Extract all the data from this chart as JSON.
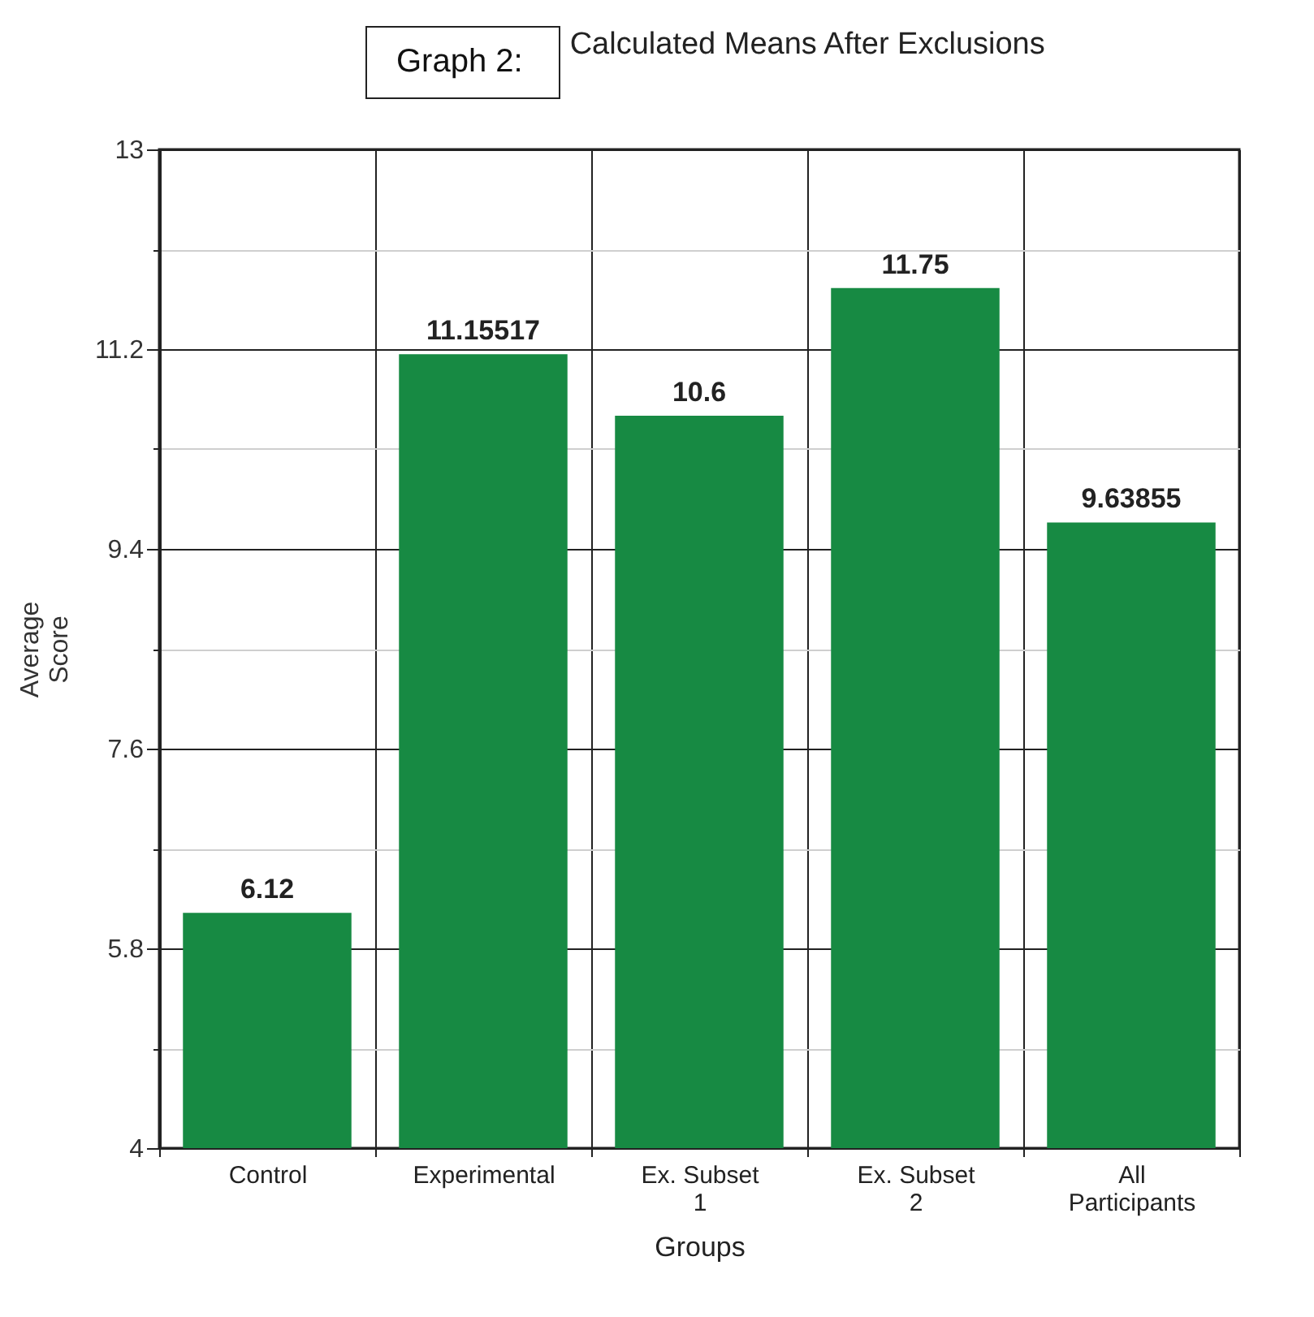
{
  "chart_data": {
    "type": "bar",
    "title": "Graph 2:",
    "subtitle": "Calculated Means After Exclusions",
    "xlabel": "Groups",
    "ylabel": "Average Score",
    "categories": [
      "Control",
      "Experimental",
      "Ex. Subset 1",
      "Ex. Subset 2",
      "All Participants"
    ],
    "values": [
      6.12,
      11.15517,
      10.6,
      11.75,
      9.63855
    ],
    "color": "#178a43",
    "ylim": [
      4,
      13
    ],
    "yticks": [
      4,
      {
        "value": 4.9,
        "label": null
      },
      5.8,
      {
        "value": 6.7,
        "label": null
      },
      7.6,
      {
        "value": 8.5,
        "label": null
      },
      9.4,
      {
        "value": 10.3,
        "label": null
      },
      11.2,
      {
        "value": 12.1,
        "label": null
      },
      13
    ],
    "grid": true,
    "data_labels": true
  }
}
